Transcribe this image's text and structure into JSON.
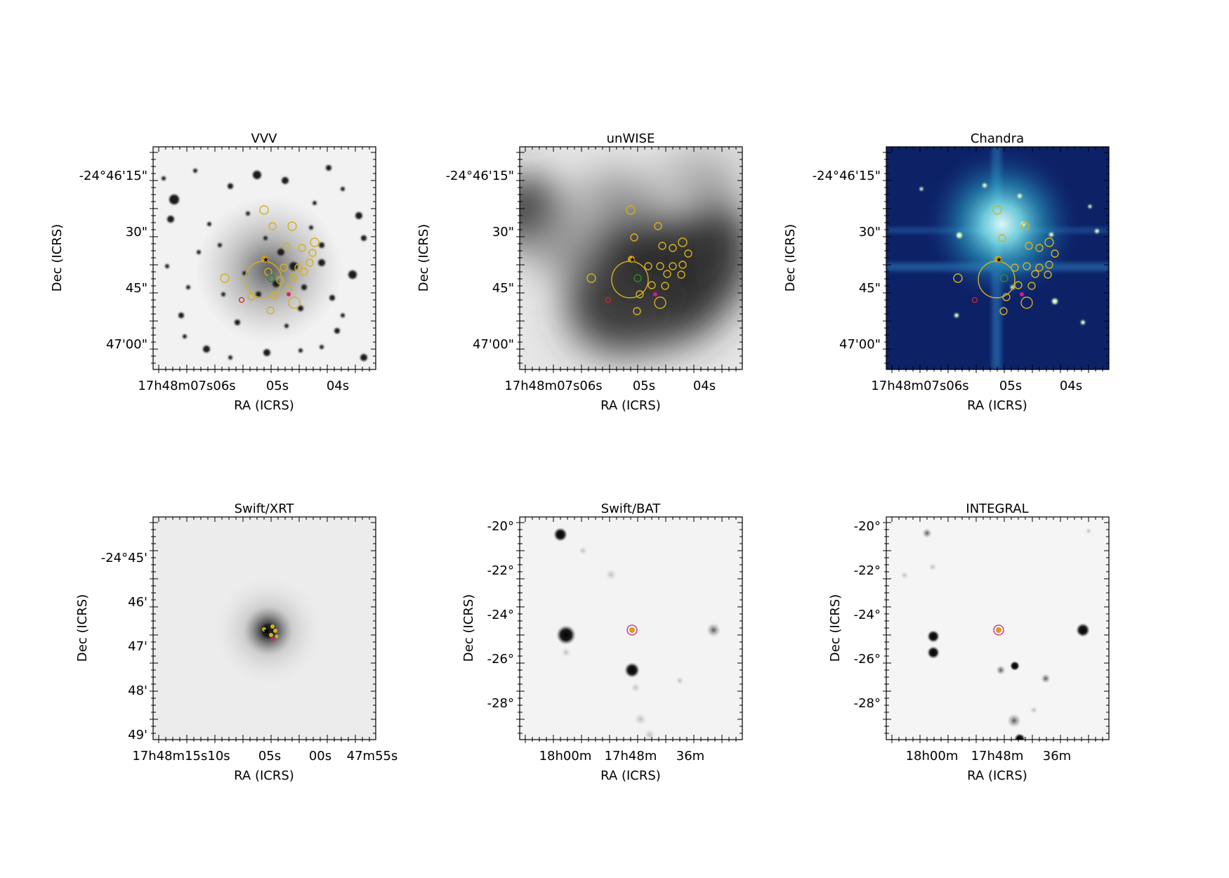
{
  "figure": {
    "panels": [
      {
        "id": "vvv",
        "title": "VVV",
        "style": "optical-light",
        "xlabel": "RA (ICRS)",
        "ylabel": "Dec (ICRS)",
        "yticks": [
          "-24°46'15\"",
          "30\"",
          "45\"",
          "47'00\""
        ],
        "xticks": [
          "17h48m07s06s",
          "05s",
          "04s"
        ]
      },
      {
        "id": "unwise",
        "title": "unWISE",
        "style": "blurred-gray",
        "xlabel": "RA (ICRS)",
        "ylabel": "Dec (ICRS)",
        "yticks": [
          "-24°46'15\"",
          "30\"",
          "45\"",
          "47'00\""
        ],
        "xticks": [
          "17h48m07s06s",
          "05s",
          "04s"
        ]
      },
      {
        "id": "chandra",
        "title": "Chandra",
        "style": "blue-colormap",
        "xlabel": "RA (ICRS)",
        "ylabel": "Dec (ICRS)",
        "yticks": [
          "-24°46'15\"",
          "30\"",
          "45\"",
          "47'00\""
        ],
        "xticks": [
          "17h48m07s06s",
          "05s",
          "04s"
        ]
      },
      {
        "id": "swift-xrt",
        "title": "Swift/XRT",
        "style": "xray-point",
        "xlabel": "RA (ICRS)",
        "ylabel": "Dec (ICRS)",
        "yticks": [
          "-24°45'",
          "46'",
          "47'",
          "48'",
          "49'"
        ],
        "xticks": [
          "17h48m15s10s",
          "05s",
          "00s",
          "47m55s"
        ]
      },
      {
        "id": "swift-bat",
        "title": "Swift/BAT",
        "style": "hard-xray",
        "xlabel": "RA (ICRS)",
        "ylabel": "Dec (ICRS)",
        "yticks": [
          "-20°",
          "-22°",
          "-24°",
          "-26°",
          "-28°"
        ],
        "xticks": [
          "18h00m",
          "17h48m",
          "36m"
        ]
      },
      {
        "id": "integral",
        "title": "INTEGRAL",
        "style": "hard-xray",
        "xlabel": "RA (ICRS)",
        "ylabel": "Dec (ICRS)",
        "yticks": [
          "-20°",
          "-22°",
          "-24°",
          "-26°",
          "-28°"
        ],
        "xticks": [
          "18h00m",
          "17h48m",
          "36m"
        ]
      }
    ],
    "colors": {
      "source_circles": "#d4b021",
      "large_error_circle": "#d4b021",
      "cross_marker": "#d4a017",
      "green_circle": "#2e8b2e",
      "red_markers": "#d62728",
      "magenta_markers": "#d81b8a",
      "chandra_bg": "#0a1a5c",
      "chandra_glow": "#3fd9e0"
    }
  }
}
